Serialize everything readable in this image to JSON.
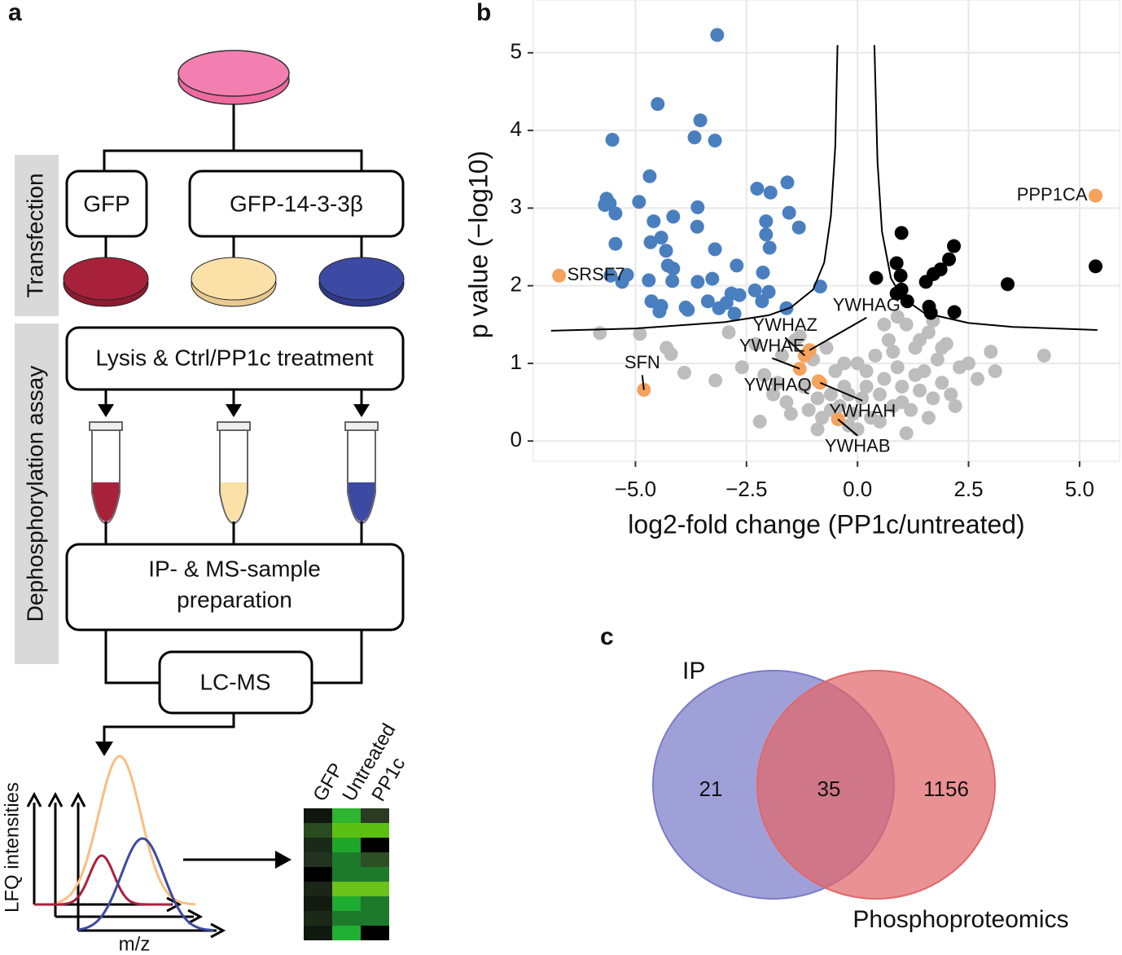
{
  "diagram": {
    "label": "a",
    "side_labels": [
      "Transfection",
      "Dephosphorylation assay"
    ],
    "boxes": [
      "GFP",
      "GFP-14-3-3β",
      "Lysis & Ctrl/PP1c treatment",
      "IP- & MS-sample",
      "preparation",
      "LC-MS"
    ],
    "plot_labels": [
      "LFQ intensities",
      "m/z"
    ],
    "heatmap_labels": [
      "GFP",
      "Untreated",
      "PP1c"
    ]
  },
  "chart_data": [
    {
      "type": "scatter",
      "panel_label": "b",
      "xlabel": "log2-fold change (PP1c/untreated)",
      "ylabel": "p value (−log10)",
      "xlim": [
        -7.3,
        5.9
      ],
      "ylim": [
        -0.26,
        5.68
      ],
      "xticks": [
        {
          "value": -5,
          "label": "−5.0"
        },
        {
          "value": -2.5,
          "label": "−2.5"
        },
        {
          "value": 0,
          "label": "0.0"
        },
        {
          "value": 2.5,
          "label": "2.5"
        },
        {
          "value": 5,
          "label": "5.0"
        }
      ],
      "yticks": [
        0,
        1,
        2,
        3,
        4,
        5
      ],
      "grid": true,
      "series": [
        {
          "color": "#bdbdbd",
          "x": [
            -5.8,
            -4.9,
            -4.3,
            -4.2,
            -3.9,
            -3.2,
            -2.9,
            -2.6,
            -2.3,
            -2.1,
            -1.9,
            -1.7,
            -1.6,
            -1.4,
            -1.2,
            -1.1,
            -1.0,
            -0.9,
            -0.8,
            -0.7,
            -0.6,
            -0.5,
            -0.4,
            -0.3,
            -0.2,
            -0.1,
            0.0,
            0.1,
            0.2,
            0.3,
            0.4,
            0.5,
            0.6,
            0.7,
            0.8,
            0.9,
            1.0,
            1.1,
            1.2,
            1.3,
            1.4,
            1.5,
            1.6,
            1.7,
            1.8,
            1.9,
            2.0,
            2.1,
            2.3,
            2.5,
            2.7,
            3.0,
            3.1,
            4.2,
            -2.2,
            -1.8,
            -1.5,
            -1.3,
            -0.9,
            -0.6,
            -0.3,
            0.2,
            0.5,
            0.8,
            1.0,
            1.3,
            1.6,
            1.9,
            2.2,
            0.6,
            1.1,
            1.4,
            -0.2,
            0.0,
            0.9,
            1.7
          ],
          "values": [
            1.39,
            1.38,
            1.2,
            1.12,
            0.88,
            0.78,
            1.4,
            0.95,
            1.25,
            0.85,
            0.6,
            1.1,
            0.5,
            1.3,
            0.7,
            0.4,
            1.05,
            0.55,
            0.3,
            1.2,
            0.6,
            0.9,
            0.45,
            0.7,
            0.2,
            0.35,
            0.15,
            0.55,
            0.9,
            0.3,
            1.1,
            0.6,
            0.8,
            1.3,
            0.45,
            0.95,
            0.7,
            1.5,
            0.4,
            1.2,
            0.65,
            0.9,
            1.4,
            0.55,
            1.05,
            0.75,
            1.25,
            0.6,
            0.95,
            1.0,
            0.8,
            1.15,
            0.9,
            1.1,
            0.25,
            0.75,
            0.35,
            1.35,
            0.15,
            0.4,
            1.0,
            0.7,
            0.25,
            1.15,
            0.5,
            0.85,
            0.3,
            1.2,
            0.45,
            1.5,
            0.1,
            1.3,
            0.6,
            1.0,
            1.6,
            1.55
          ]
        },
        {
          "color": "#4a7fbf",
          "x": [
            -3.16,
            -4.5,
            -3.54,
            -5.52,
            -3.67,
            -3.21,
            -4.68,
            -1.58,
            -2.26,
            -1.96,
            -5.65,
            -5.58,
            -4.92,
            -3.6,
            -5.69,
            -5.45,
            -1.54,
            -4.15,
            -4.59,
            -2.06,
            -3.61,
            -1.32,
            -4.42,
            -4.66,
            -2.06,
            -5.45,
            -1.98,
            -4.31,
            -3.21,
            -4.27,
            -4.15,
            -2.72,
            -2.13,
            -5.56,
            -5.19,
            -4.7,
            -4.17,
            -3.6,
            -5.3,
            -3.27,
            -2.31,
            -2.84,
            -2.66,
            -2.0,
            -0.84,
            -3.37,
            -2.95,
            -2.15,
            -4.64,
            -4.42,
            -3.87,
            -3.12,
            -1.6,
            -2.77,
            -3.82,
            -4.46
          ],
          "values": [
            5.23,
            4.34,
            4.13,
            3.88,
            3.91,
            3.87,
            3.41,
            3.33,
            3.25,
            3.2,
            3.12,
            3.06,
            3.08,
            3.01,
            3.04,
            2.93,
            2.94,
            2.89,
            2.83,
            2.83,
            2.76,
            2.75,
            2.62,
            2.56,
            2.66,
            2.54,
            2.49,
            2.45,
            2.47,
            2.26,
            2.22,
            2.26,
            2.17,
            2.13,
            2.14,
            2.07,
            2.06,
            2.05,
            2.05,
            2.09,
            1.94,
            1.9,
            1.88,
            1.92,
            1.99,
            1.8,
            1.78,
            1.8,
            1.8,
            1.74,
            1.72,
            1.71,
            1.71,
            1.64,
            1.69,
            1.67
          ]
        },
        {
          "color": "#000000",
          "x": [
            0.99,
            2.17,
            2.06,
            0.88,
            5.36,
            1.87,
            1.71,
            0.97,
            0.42,
            1.54,
            3.38,
            0.99,
            0.88,
            1.12,
            1.61,
            2.18,
            1.65
          ],
          "values": [
            2.68,
            2.51,
            2.34,
            2.29,
            2.25,
            2.21,
            2.15,
            2.13,
            2.1,
            2.05,
            2.02,
            1.95,
            1.9,
            1.8,
            1.73,
            1.66,
            1.65
          ]
        },
        {
          "color": "#f5a25d",
          "x": [
            5.36,
            -6.72,
            -4.81,
            -1.08,
            -1.19,
            -1.3,
            -0.88,
            -0.84,
            -0.44
          ],
          "values": [
            3.16,
            2.13,
            0.66,
            1.17,
            1.1,
            0.93,
            0.77,
            0.75,
            0.28
          ],
          "point_labels": [
            "PPP1CA",
            "SRSF7",
            "SFN",
            "YWHAG",
            "YWHAZ",
            "YWHAE",
            "YWHAQ",
            "YWHAH",
            "YWHAB"
          ]
        },
        {
          "style": "line",
          "color": "#000000",
          "x": [
            -6.9,
            -5,
            -3,
            -2,
            -1.5,
            -1,
            -0.75,
            -0.6,
            -0.5,
            -0.45
          ],
          "values": [
            1.42,
            1.45,
            1.53,
            1.62,
            1.72,
            1.95,
            2.3,
            2.9,
            3.8,
            5.1
          ]
        },
        {
          "style": "line",
          "color": "#000000",
          "x": [
            0.38,
            0.45,
            0.55,
            0.75,
            1.0,
            1.5,
            2.5,
            3.5,
            5.4
          ],
          "values": [
            5.1,
            3.6,
            2.7,
            2.1,
            1.85,
            1.65,
            1.52,
            1.47,
            1.43
          ]
        }
      ]
    },
    {
      "type": "venn",
      "panel_label": "c",
      "sets": [
        {
          "name": "IP",
          "color": "#7b7bc9"
        },
        {
          "name": "Phosphoproteomics",
          "color": "#e0676a"
        }
      ],
      "values": [
        21,
        35,
        1156
      ]
    }
  ]
}
